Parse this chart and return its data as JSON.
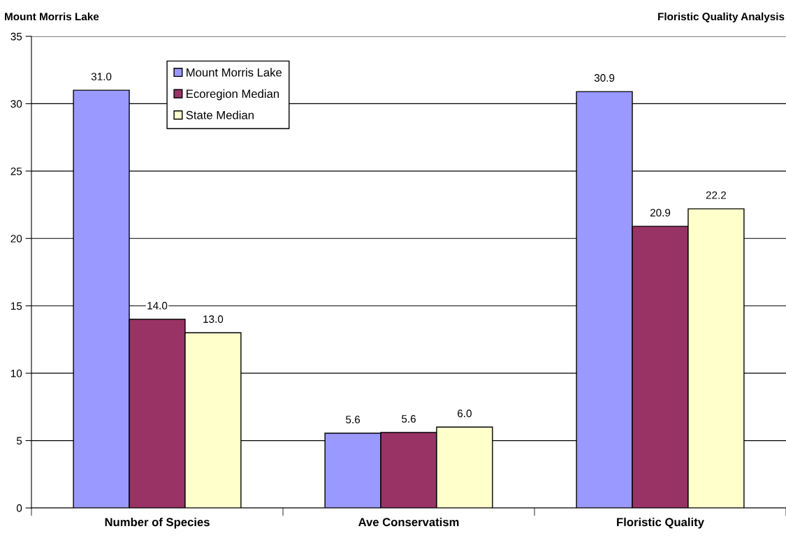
{
  "chart_data": {
    "type": "bar",
    "title": "Mount Morris Lake",
    "subtitle": "Floristic Quality Analysis",
    "categories": [
      "Number of Species",
      "Ave Conservatism",
      "Floristic Quality"
    ],
    "series": [
      {
        "name": "Mount Morris Lake",
        "color": "#9999ff",
        "values": [
          31.0,
          5.55,
          30.9
        ],
        "value_labels": [
          "31.0",
          "5.6",
          "30.9"
        ]
      },
      {
        "name": "Ecoregion Median",
        "color": "#993366",
        "values": [
          14.0,
          5.6,
          20.9
        ],
        "value_labels": [
          "14.0",
          "5.6",
          "20.9"
        ]
      },
      {
        "name": "State Median",
        "color": "#ffffcc",
        "values": [
          13.0,
          6.0,
          22.2
        ],
        "value_labels": [
          "13.0",
          "6.0",
          "22.2"
        ]
      }
    ],
    "ylim": [
      0,
      35
    ],
    "yticks": [
      0,
      5,
      10,
      15,
      20,
      25,
      30,
      35
    ],
    "grid": "y",
    "legend": "top left"
  }
}
